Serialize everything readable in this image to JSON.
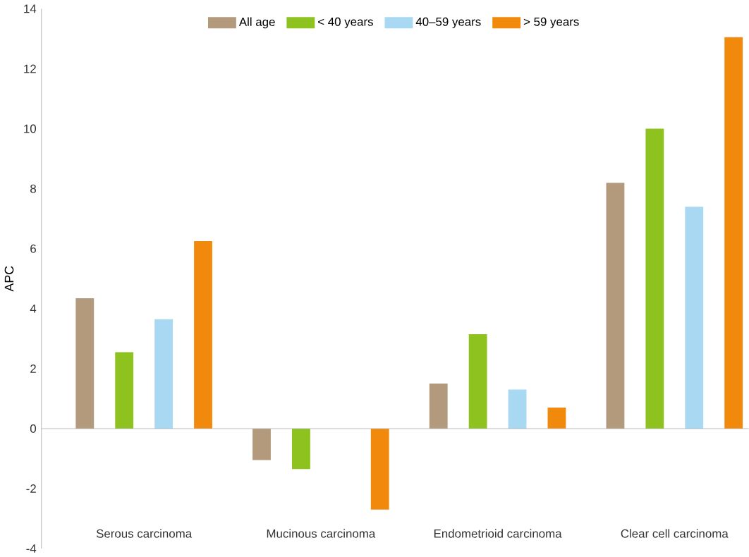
{
  "chart_data": {
    "type": "bar",
    "ylabel": "APC",
    "categories": [
      "Serous carcinoma",
      "Mucinous carcinoma",
      "Endometrioid carcinoma",
      "Clear cell carcinoma"
    ],
    "series": [
      {
        "name": "All age",
        "color": "#b39a7c",
        "values": [
          4.35,
          -1.05,
          1.5,
          8.2
        ]
      },
      {
        "name": "< 40 years",
        "color": "#8dc21f",
        "values": [
          2.55,
          -1.35,
          3.15,
          10.0
        ]
      },
      {
        "name": "40–59 years",
        "color": "#a8d8f2",
        "values": [
          3.65,
          null,
          1.3,
          7.4
        ]
      },
      {
        "name": "> 59 years",
        "color": "#f18a0c",
        "values": [
          6.25,
          -2.7,
          0.7,
          13.05
        ]
      }
    ],
    "ylim": [
      -4,
      14
    ],
    "yticks": [
      -4,
      -2,
      0,
      2,
      4,
      6,
      8,
      10,
      12,
      14
    ],
    "legend": "top"
  }
}
